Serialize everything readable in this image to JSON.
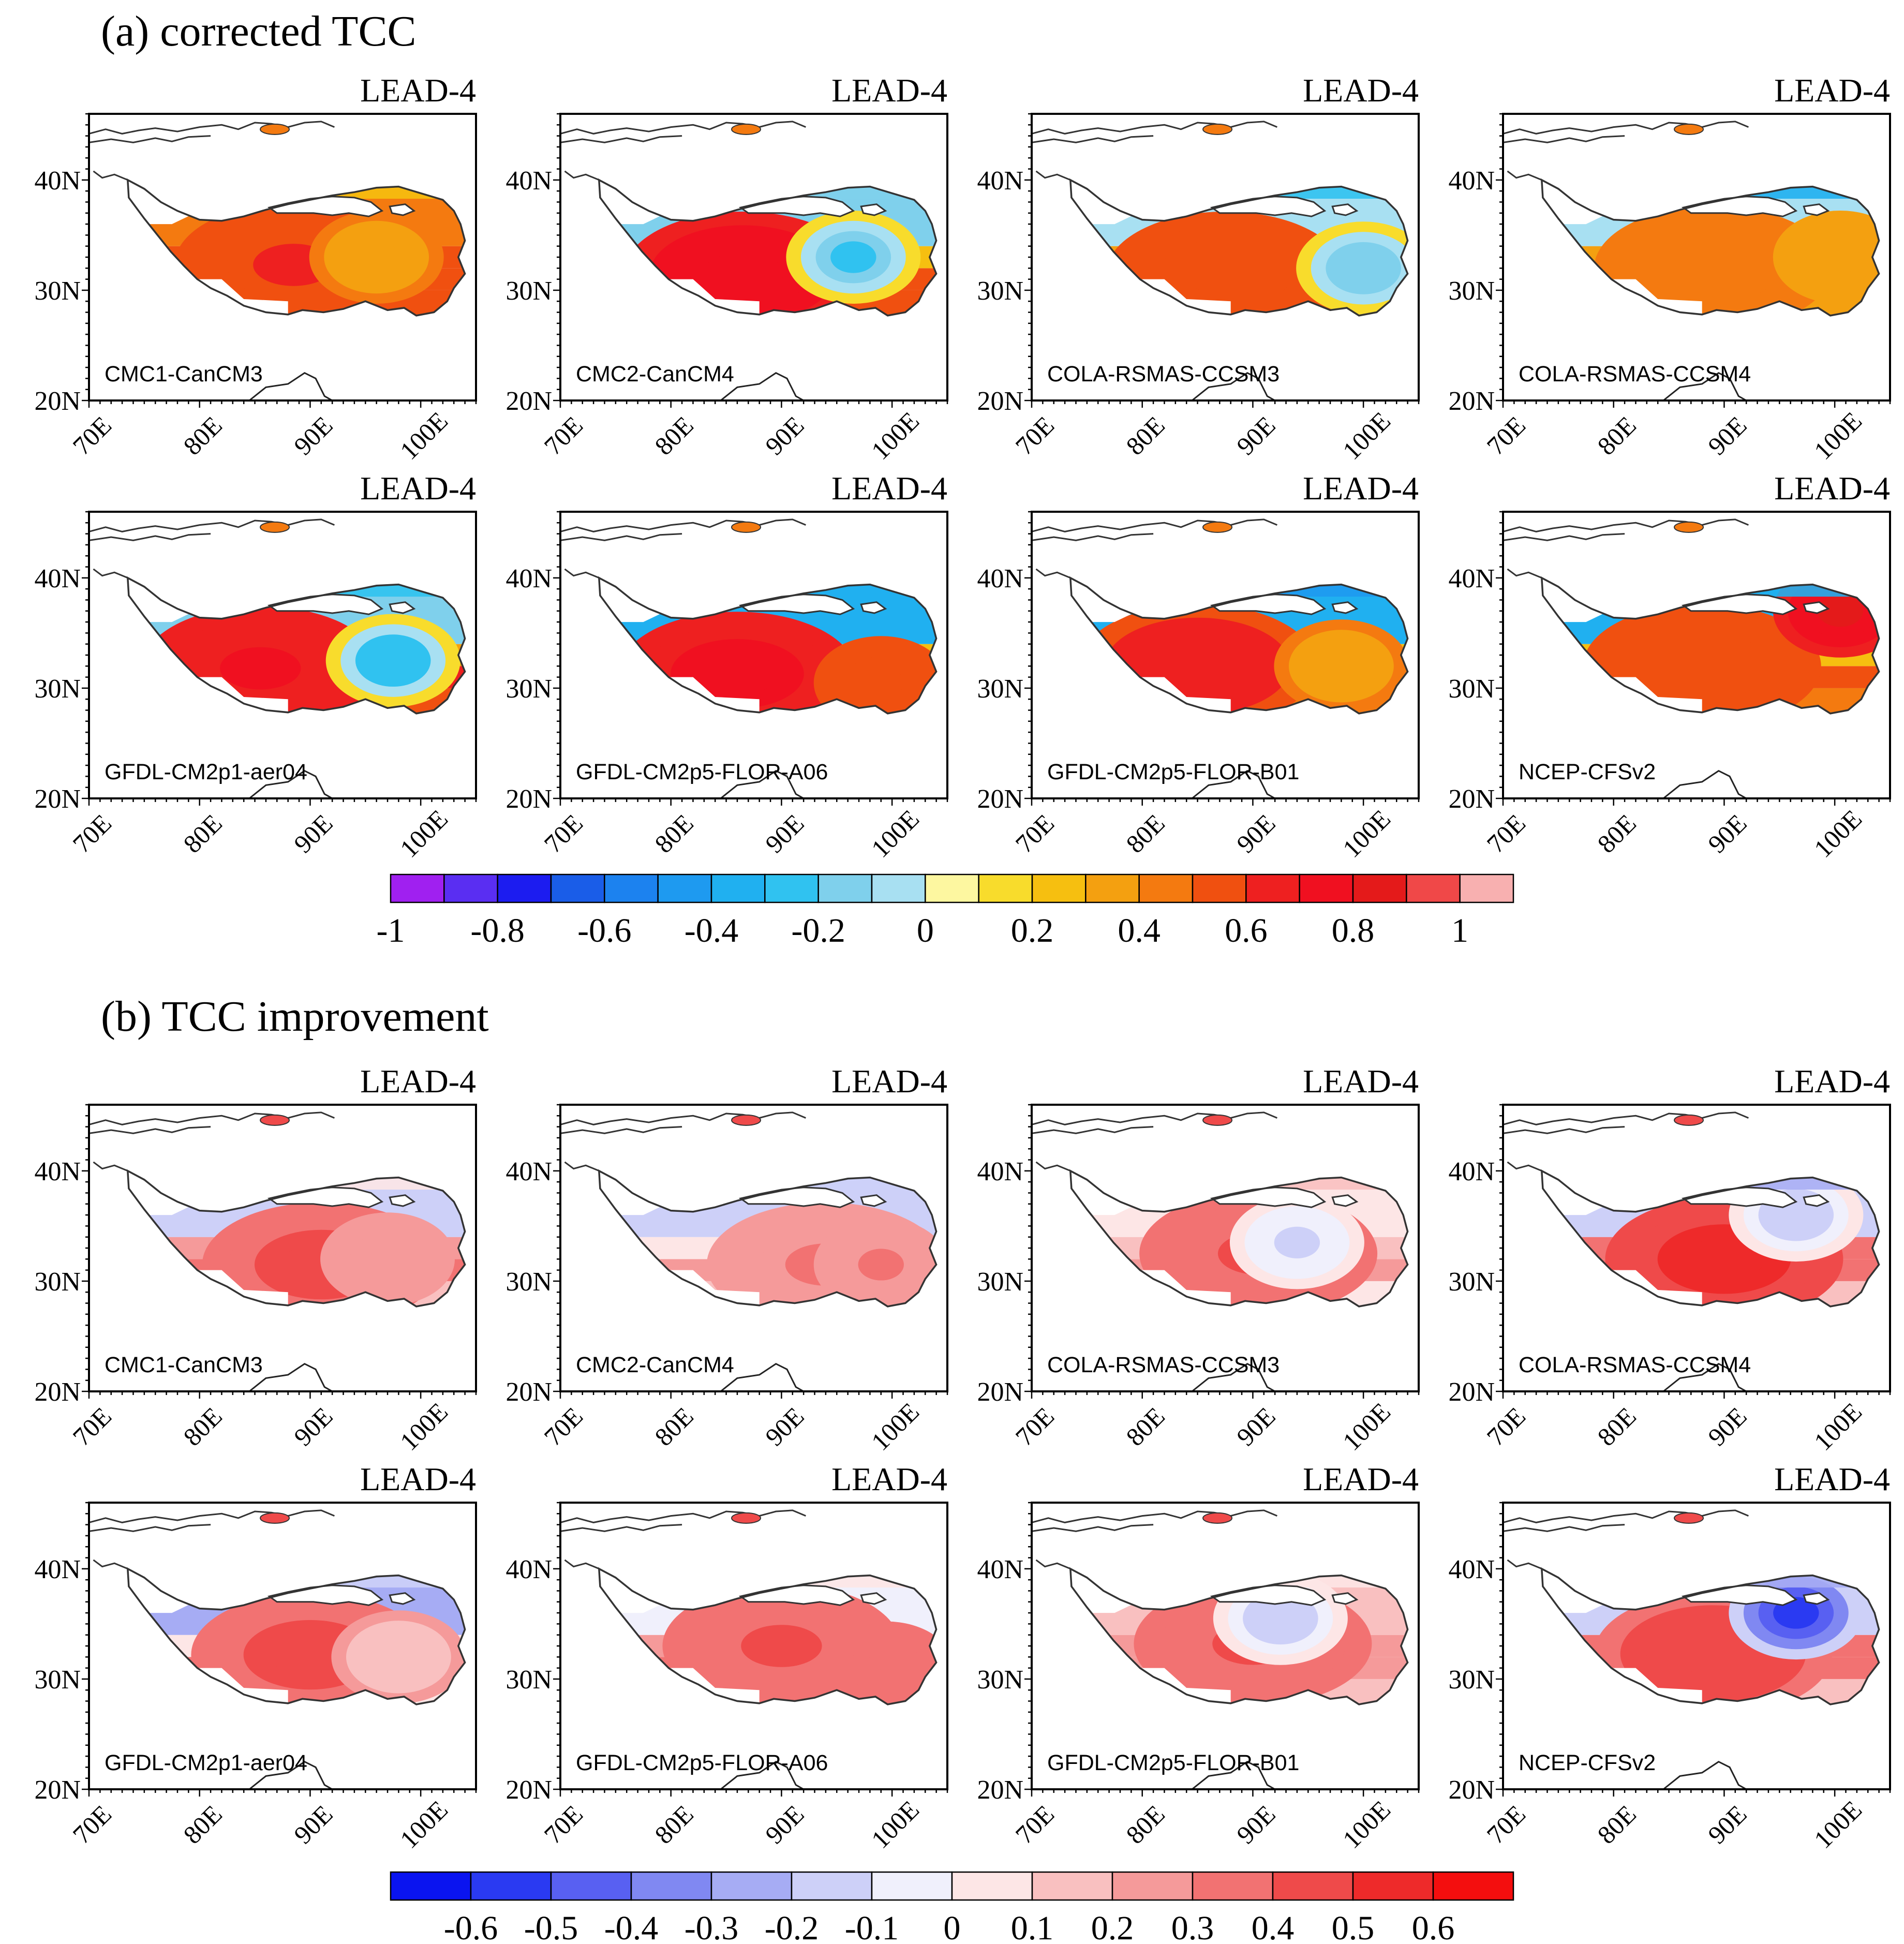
{
  "chart_data": [
    {
      "type": "heatmap",
      "title": "(a) corrected TCC",
      "lead_label": "LEAD-4",
      "x_ticks": [
        "70E",
        "80E",
        "90E",
        "100E"
      ],
      "y_ticks": [
        "40N",
        "30N",
        "20N"
      ],
      "xlim": [
        70,
        105
      ],
      "ylim": [
        20,
        46
      ],
      "colorbar": {
        "levels": [
          -1,
          -0.9,
          -0.8,
          -0.7,
          -0.6,
          -0.5,
          -0.4,
          -0.3,
          -0.2,
          -0.1,
          0,
          0.1,
          0.2,
          0.3,
          0.4,
          0.5,
          0.6,
          0.7,
          0.8,
          0.9,
          1
        ],
        "labels": [
          "-1",
          "-0.8",
          "-0.6",
          "-0.4",
          "-0.2",
          "0",
          "0.2",
          "0.4",
          "0.6",
          "0.8",
          "1"
        ],
        "label_values": [
          -1,
          -0.8,
          -0.6,
          -0.4,
          -0.2,
          0,
          0.2,
          0.4,
          0.6,
          0.8,
          1
        ],
        "colors": [
          "#a020f0",
          "#5a2ef2",
          "#1c1cf0",
          "#1a5de8",
          "#1c82ef",
          "#1e9af0",
          "#20b0f0",
          "#30c2f0",
          "#7fd0ec",
          "#a8e0f2",
          "#fdf7a0",
          "#f8dc2c",
          "#f6bf10",
          "#f4a010",
          "#f47a10",
          "#f05010",
          "#ee2020",
          "#f01020",
          "#e41a1a",
          "#f04848",
          "#f8b0b0"
        ]
      },
      "panels": [
        {
          "model": "CMC1-CanCM3",
          "cells": [
            [
              29,
              0.52
            ],
            [
              31,
              0.58
            ],
            [
              33,
              0.55
            ],
            [
              35,
              0.4
            ]
          ],
          "hot": {
            "lon": 88.5,
            "lat": 32.3,
            "value": 0.6
          },
          "hot2": {
            "lon": 96,
            "lat": 33,
            "value": 0.33
          },
          "north": 0.2
        },
        {
          "model": "CMC2-CanCM4",
          "cells": [
            [
              29,
              0.5
            ],
            [
              31,
              0.58
            ],
            [
              33,
              0.2
            ],
            [
              35,
              -0.2
            ]
          ],
          "hot": {
            "lon": 86.5,
            "lat": 31.5,
            "value": 0.75
          },
          "hot2": {
            "lon": 96.5,
            "lat": 33,
            "value": -0.25
          },
          "north": -0.2
        },
        {
          "model": "COLA-RSMAS-CCSM3",
          "cells": [
            [
              29,
              0.52
            ],
            [
              31,
              0.48
            ],
            [
              33,
              0.3
            ],
            [
              35,
              -0.1
            ]
          ],
          "hot": {
            "lon": 87.5,
            "lat": 31.5,
            "value": 0.55
          },
          "hot2": {
            "lon": 100,
            "lat": 32,
            "value": -0.2
          },
          "north": -0.25
        },
        {
          "model": "COLA-RSMAS-CCSM4",
          "cells": [
            [
              29,
              0.35
            ],
            [
              31,
              0.45
            ],
            [
              33,
              0.38
            ],
            [
              35,
              -0.1
            ]
          ],
          "hot": {
            "lon": 89,
            "lat": 32,
            "value": 0.45
          },
          "hot2": {
            "lon": 100.5,
            "lat": 33,
            "value": 0.35
          },
          "north": -0.4
        },
        {
          "model": "GFDL-CM2p1-aer04",
          "cells": [
            [
              29,
              0.55
            ],
            [
              31,
              0.62
            ],
            [
              33,
              0.3
            ],
            [
              35,
              -0.15
            ]
          ],
          "hot": {
            "lon": 85.5,
            "lat": 31.8,
            "value": 0.7
          },
          "hot2": {
            "lon": 97.5,
            "lat": 32.5,
            "value": -0.3
          },
          "north": -0.3
        },
        {
          "model": "GFDL-CM2p5-FLOR-A06",
          "cells": [
            [
              29,
              0.5
            ],
            [
              31,
              0.62
            ],
            [
              33,
              0.2
            ],
            [
              35,
              -0.35
            ]
          ],
          "hot": {
            "lon": 86,
            "lat": 31.3,
            "value": 0.72
          },
          "hot2": {
            "lon": 99,
            "lat": 30.5,
            "value": 0.55
          },
          "north": -0.4
        },
        {
          "model": "GFDL-CM2p5-FLOR-B01",
          "cells": [
            [
              29,
              0.48
            ],
            [
              31,
              0.55
            ],
            [
              33,
              0.25
            ],
            [
              35,
              -0.35
            ]
          ],
          "hot": {
            "lon": 85,
            "lat": 32,
            "value": 0.62
          },
          "hot2": {
            "lon": 98,
            "lat": 32,
            "value": 0.3
          },
          "north": -0.45
        },
        {
          "model": "NCEP-CFSv2",
          "cells": [
            [
              29,
              0.45
            ],
            [
              31,
              0.52
            ],
            [
              33,
              0.28
            ],
            [
              35,
              -0.35
            ]
          ],
          "hot": {
            "lon": 88,
            "lat": 32,
            "value": 0.55
          },
          "hot2": {
            "lon": 100.5,
            "lat": 37,
            "value": 0.8
          },
          "north": -0.4
        }
      ]
    },
    {
      "type": "heatmap",
      "title": "(b) TCC improvement",
      "lead_label": "LEAD-4",
      "x_ticks": [
        "70E",
        "80E",
        "90E",
        "100E"
      ],
      "y_ticks": [
        "40N",
        "30N",
        "20N"
      ],
      "xlim": [
        70,
        105
      ],
      "ylim": [
        20,
        46
      ],
      "colorbar": {
        "levels": [
          -0.7,
          -0.6,
          -0.5,
          -0.4,
          -0.3,
          -0.2,
          -0.1,
          0,
          0.1,
          0.2,
          0.3,
          0.4,
          0.5,
          0.6,
          0.7
        ],
        "labels": [
          "-0.6",
          "-0.5",
          "-0.4",
          "-0.3",
          "-0.2",
          "-0.1",
          "0",
          "0.1",
          "0.2",
          "0.3",
          "0.4",
          "0.5",
          "0.6"
        ],
        "label_values": [
          -0.6,
          -0.5,
          -0.4,
          -0.3,
          -0.2,
          -0.1,
          0,
          0.1,
          0.2,
          0.3,
          0.4,
          0.5,
          0.6
        ],
        "colors": [
          "#0a14f0",
          "#2a3af2",
          "#5860f2",
          "#8088f2",
          "#a6acf4",
          "#cdd0f8",
          "#f0f0fc",
          "#fde6e6",
          "#f9c0c0",
          "#f59a9a",
          "#f27272",
          "#ef4a4a",
          "#ee2a2a",
          "#f40e0e"
        ]
      },
      "panels": [
        {
          "model": "CMC1-CanCM3",
          "cells": [
            [
              29,
              0.12
            ],
            [
              31,
              0.3
            ],
            [
              33,
              0.22
            ],
            [
              35,
              -0.12
            ]
          ],
          "hot": {
            "lon": 91,
            "lat": 31.5,
            "value": 0.42
          },
          "hot2": {
            "lon": 97,
            "lat": 32,
            "value": 0.2
          },
          "north": 0.05
        },
        {
          "model": "CMC2-CanCM4",
          "cells": [
            [
              29,
              0.1
            ],
            [
              31,
              0.22
            ],
            [
              33,
              0.05
            ],
            [
              35,
              -0.15
            ]
          ],
          "hot": {
            "lon": 94,
            "lat": 31.5,
            "value": 0.3
          },
          "hot2": {
            "lon": 99,
            "lat": 31.5,
            "value": 0.3
          },
          "north": -0.2
        },
        {
          "model": "COLA-RSMAS-CCSM3",
          "cells": [
            [
              29,
              0.08
            ],
            [
              31,
              0.2
            ],
            [
              33,
              0.15
            ],
            [
              35,
              0.05
            ]
          ],
          "hot": {
            "lon": 90.5,
            "lat": 32.5,
            "value": 0.42
          },
          "hot2": {
            "lon": 94,
            "lat": 33.5,
            "value": -0.12
          },
          "north": 0.1
        },
        {
          "model": "COLA-RSMAS-CCSM4",
          "cells": [
            [
              29,
              0.12
            ],
            [
              31,
              0.3
            ],
            [
              33,
              0.3
            ],
            [
              35,
              -0.15
            ]
          ],
          "hot": {
            "lon": 90,
            "lat": 32,
            "value": 0.55
          },
          "hot2": {
            "lon": 96.5,
            "lat": 36,
            "value": -0.2
          },
          "north": -0.3
        },
        {
          "model": "GFDL-CM2p1-aer04",
          "cells": [
            [
              29,
              0.05
            ],
            [
              31,
              0.3
            ],
            [
              33,
              0.08
            ],
            [
              35,
              -0.25
            ]
          ],
          "hot": {
            "lon": 90,
            "lat": 32.2,
            "value": 0.42
          },
          "hot2": {
            "lon": 98,
            "lat": 32,
            "value": 0.12
          },
          "north": -0.2
        },
        {
          "model": "GFDL-CM2p5-FLOR-A06",
          "cells": [
            [
              29,
              0.18
            ],
            [
              31,
              0.3
            ],
            [
              33,
              0.22
            ],
            [
              35,
              -0.1
            ]
          ],
          "hot": {
            "lon": 90,
            "lat": 33,
            "value": 0.4
          },
          "hot2": {
            "lon": 99.5,
            "lat": 31,
            "value": 0.3
          },
          "north": 0.05
        },
        {
          "model": "GFDL-CM2p5-FLOR-B01",
          "cells": [
            [
              29,
              0.1
            ],
            [
              31,
              0.25
            ],
            [
              33,
              0.22
            ],
            [
              35,
              0.1
            ]
          ],
          "hot": {
            "lon": 90,
            "lat": 33.2,
            "value": 0.4
          },
          "hot2": {
            "lon": 92.5,
            "lat": 35.5,
            "value": -0.2
          },
          "north": 0.05
        },
        {
          "model": "NCEP-CFSv2",
          "cells": [
            [
              29,
              0.15
            ],
            [
              31,
              0.32
            ],
            [
              33,
              0.3
            ],
            [
              35,
              -0.2
            ]
          ],
          "hot": {
            "lon": 89,
            "lat": 32.3,
            "value": 0.45
          },
          "hot2": {
            "lon": 96.5,
            "lat": 36,
            "value": -0.55
          },
          "north": -0.3
        }
      ]
    }
  ]
}
